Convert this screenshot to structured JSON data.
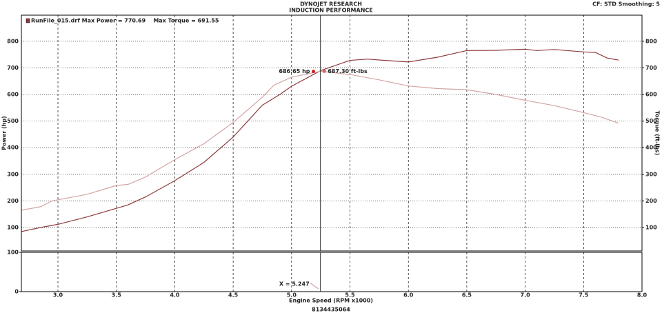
{
  "chart_data": [
    {
      "type": "line",
      "title": "DYNOJET RESEARCH",
      "subtitle": "INDUCTION PERFORMANCE",
      "header_right": "CF: STD  Smoothing: 5",
      "legend_text": "RunFile_015.drf Max Power = 770.69    Max Torque = 691.55",
      "ylabel": "Power (hp)",
      "y2label": "Torque (ft-lbs)",
      "xlim": [
        2.687,
        8.0
      ],
      "ylim": [
        12,
        898
      ],
      "yticks": [
        100,
        200,
        300,
        400,
        500,
        600,
        700,
        800
      ],
      "y2lim": [
        12,
        898
      ],
      "y2ticks": [
        100,
        200,
        300,
        400,
        500,
        600,
        700,
        800
      ],
      "grid": true,
      "series": [
        {
          "name": "Power",
          "color": "#8b3a3a",
          "x": [
            2.69,
            2.85,
            3.0,
            3.25,
            3.5,
            3.6,
            3.75,
            4.0,
            4.25,
            4.5,
            4.75,
            4.9,
            5.0,
            5.25,
            5.5,
            5.65,
            5.8,
            6.0,
            6.25,
            6.5,
            6.75,
            7.0,
            7.1,
            7.25,
            7.5,
            7.6,
            7.7,
            7.8
          ],
          "values": [
            85,
            100,
            112,
            140,
            172,
            185,
            215,
            276,
            345,
            440,
            560,
            600,
            631,
            690,
            728,
            733,
            728,
            722,
            740,
            765,
            766,
            770,
            765,
            769,
            760,
            758,
            737,
            729
          ]
        },
        {
          "name": "Torque",
          "color": "#d4a3a3",
          "axis": "y2",
          "x": [
            2.69,
            2.85,
            2.95,
            3.25,
            3.5,
            3.6,
            3.75,
            4.0,
            4.25,
            4.5,
            4.75,
            4.85,
            5.0,
            5.25,
            5.5,
            5.75,
            6.0,
            6.25,
            6.5,
            6.75,
            7.0,
            7.25,
            7.5,
            7.65,
            7.8
          ],
          "values": [
            165,
            178,
            200,
            225,
            258,
            262,
            290,
            355,
            415,
            495,
            590,
            635,
            665,
            687,
            675,
            655,
            632,
            622,
            618,
            600,
            578,
            558,
            532,
            515,
            492
          ]
        }
      ],
      "annotations": [
        {
          "x": 5.187,
          "y": 686.65,
          "label": "686.65 hp"
        },
        {
          "x": 5.28,
          "y": 687.3,
          "label": "687.30 ft-lbs"
        }
      ]
    },
    {
      "type": "line",
      "xlabel": "Engine Speed (RPM x1000)",
      "footer": "8134435064",
      "xlim": [
        2.687,
        8.0
      ],
      "xticks": [
        {
          "value": 3,
          "label": "3.0"
        },
        {
          "value": 3.5,
          "label": "3.5"
        },
        {
          "value": 4,
          "label": "4.0"
        },
        {
          "value": 4.5,
          "label": "4.5"
        },
        {
          "value": 5,
          "label": "5.0"
        },
        {
          "value": 5.5,
          "label": "5.5"
        },
        {
          "value": 6,
          "label": "6.0"
        },
        {
          "value": 6.5,
          "label": "6.5"
        },
        {
          "value": 7,
          "label": "7.0"
        },
        {
          "value": 7.5,
          "label": "7.5"
        },
        {
          "value": 8,
          "label": "8.0"
        }
      ],
      "ylim": [
        0,
        100
      ],
      "yticks": [
        0,
        100
      ],
      "series": [
        {
          "name": "Lower",
          "color": "#d4a3a3",
          "x": [
            5.16,
            5.23
          ],
          "values": [
            22,
            7
          ]
        }
      ],
      "cursor": {
        "x": 5.247,
        "label": "X = 5.247"
      }
    }
  ]
}
